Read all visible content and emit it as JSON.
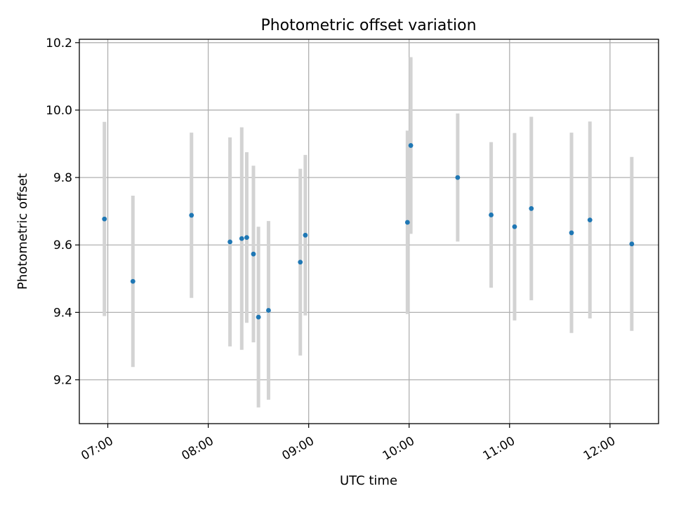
{
  "chart_data": {
    "type": "scatter",
    "title": "Photometric offset variation",
    "xlabel": "UTC time",
    "ylabel": "Photometric offset",
    "x_axis": {
      "type": "time",
      "range": [
        "06:43",
        "12:29"
      ],
      "ticks": [
        "07:00",
        "08:00",
        "09:00",
        "10:00",
        "11:00",
        "12:00"
      ]
    },
    "y_axis": {
      "range": [
        9.07,
        10.21
      ],
      "ticks": [
        9.2,
        9.4,
        9.6,
        9.8,
        10.0,
        10.2
      ],
      "tick_labels": [
        "9.2",
        "9.4",
        "9.6",
        "9.8",
        "10.0",
        "10.2"
      ]
    },
    "grid": true,
    "colors": {
      "marker": "#1f77b4",
      "errorbar": "#d3d3d3",
      "grid": "#b0b0b0"
    },
    "series": [
      {
        "points": [
          {
            "x": "06:58",
            "y": 9.677,
            "err": 0.288
          },
          {
            "x": "07:15",
            "y": 9.492,
            "err": 0.254
          },
          {
            "x": "07:50",
            "y": 9.688,
            "err": 0.245
          },
          {
            "x": "08:13",
            "y": 9.609,
            "err": 0.31
          },
          {
            "x": "08:20",
            "y": 9.619,
            "err": 0.33
          },
          {
            "x": "08:23",
            "y": 9.622,
            "err": 0.253
          },
          {
            "x": "08:27",
            "y": 9.573,
            "err": 0.262
          },
          {
            "x": "08:30",
            "y": 9.386,
            "err": 0.268
          },
          {
            "x": "08:36",
            "y": 9.406,
            "err": 0.265
          },
          {
            "x": "08:55",
            "y": 9.549,
            "err": 0.277
          },
          {
            "x": "08:58",
            "y": 9.629,
            "err": 0.238
          },
          {
            "x": "09:59",
            "y": 9.667,
            "err": 0.272
          },
          {
            "x": "10:01",
            "y": 9.895,
            "err": 0.262
          },
          {
            "x": "10:29",
            "y": 9.8,
            "err": 0.19
          },
          {
            "x": "10:49",
            "y": 9.689,
            "err": 0.216
          },
          {
            "x": "11:03",
            "y": 9.654,
            "err": 0.278
          },
          {
            "x": "11:13",
            "y": 9.708,
            "err": 0.272
          },
          {
            "x": "11:37",
            "y": 9.636,
            "err": 0.297
          },
          {
            "x": "11:48",
            "y": 9.674,
            "err": 0.292
          },
          {
            "x": "12:13",
            "y": 9.603,
            "err": 0.258
          }
        ]
      }
    ]
  }
}
